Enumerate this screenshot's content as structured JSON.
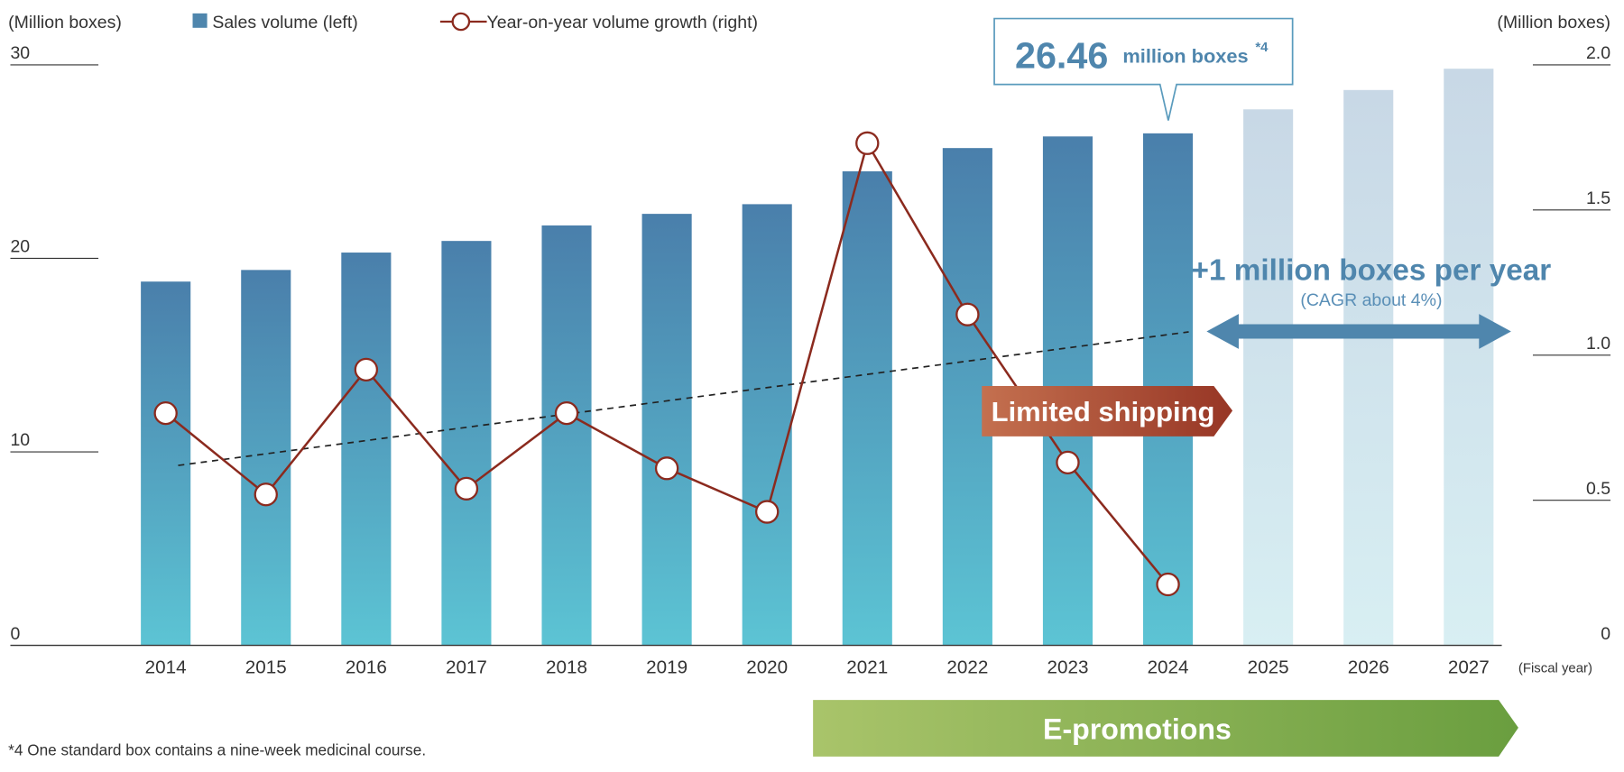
{
  "chart_data": {
    "type": "bar_line",
    "categories": [
      "2014",
      "2015",
      "2016",
      "2017",
      "2018",
      "2019",
      "2020",
      "2021",
      "2022",
      "2023",
      "2024",
      "2025",
      "2026",
      "2027"
    ],
    "x_label": "(Fiscal year)",
    "y_label": "(Million boxes)",
    "y2_label": "(Million boxes)",
    "ylim": [
      0,
      30
    ],
    "yticks": [
      0,
      10,
      20,
      30
    ],
    "y2lim": [
      0,
      2
    ],
    "y2ticks": [
      0,
      0.5,
      {
        "value": 1,
        "label": "1.0"
      },
      1.5,
      {
        "value": 2,
        "label": "2.0"
      }
    ],
    "series": [
      {
        "name": "Sales volume (left)",
        "color": "#4f86ad",
        "forecast_color": "#cadbe7",
        "forecast_categories": [
          "2025",
          "2026",
          "2027"
        ],
        "values": [
          18.8,
          19.4,
          20.3,
          20.9,
          21.7,
          22.3,
          22.8,
          24.5,
          25.7,
          26.3,
          26.46,
          27.7,
          28.7,
          29.8
        ]
      },
      {
        "name": "Year-on-year volume growth (right)",
        "color": "#8b2a1e",
        "axis": "y2",
        "values": [
          0.8,
          0.52,
          0.95,
          0.54,
          0.8,
          0.61,
          0.46,
          1.73,
          1.14,
          0.63,
          0.21,
          null,
          null,
          null
        ]
      }
    ],
    "trend": {
      "categories": [
        "2014",
        "2024"
      ],
      "values": [
        9.3,
        16.2
      ]
    },
    "callout": {
      "unit": "million boxes",
      "note_mark": "*4"
    },
    "annotations": {
      "growth": "+1 million boxes per year",
      "cagr": "(CAGR about 4%)",
      "limited": "Limited shipping",
      "promotions": "E-promotions"
    },
    "footnote": "*4 One standard box contains a nine-week medicinal course."
  }
}
